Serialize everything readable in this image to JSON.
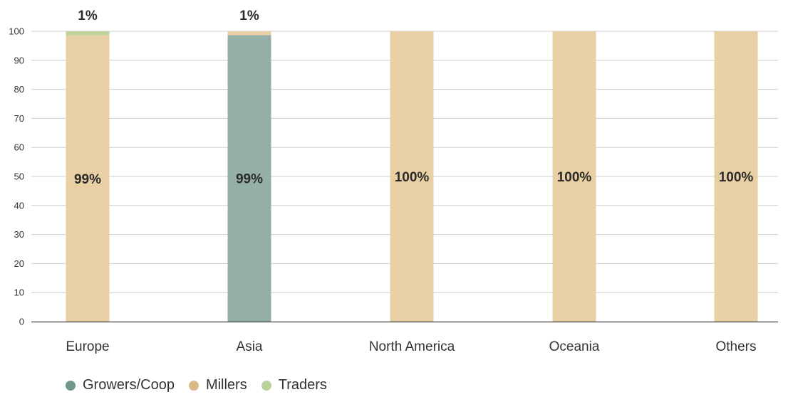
{
  "chart_data": {
    "type": "bar",
    "stacked": true,
    "categories": [
      "Europe",
      "Asia",
      "North America",
      "Oceania",
      "Others"
    ],
    "series": [
      {
        "name": "Growers/Coop",
        "color": "#94afa5",
        "values": [
          0,
          98.7,
          0,
          0,
          0
        ]
      },
      {
        "name": "Millers",
        "color": "#e8cfa4",
        "values": [
          98.6,
          1.3,
          100,
          100,
          100
        ]
      },
      {
        "name": "Traders",
        "color": "#bed39c",
        "values": [
          1.4,
          0,
          0,
          0,
          0
        ]
      }
    ],
    "data_labels": [
      {
        "category": "Europe",
        "series": "Millers",
        "text": "99%"
      },
      {
        "category": "Europe",
        "series": "Traders",
        "text": "1%"
      },
      {
        "category": "Asia",
        "series": "Growers/Coop",
        "text": "99%"
      },
      {
        "category": "Asia",
        "series": "Millers",
        "text": "1%"
      },
      {
        "category": "North America",
        "series": "Millers",
        "text": "100%"
      },
      {
        "category": "Oceania",
        "series": "Millers",
        "text": "100%"
      },
      {
        "category": "Others",
        "series": "Millers",
        "text": "100%"
      }
    ],
    "yticks": [
      0,
      10,
      20,
      30,
      40,
      50,
      60,
      70,
      80,
      90,
      100
    ],
    "ylim": [
      0,
      100
    ],
    "grid": true,
    "legend_position": "bottom-left",
    "legend_marker_colors": [
      "#6f978a",
      "#d9b889",
      "#b8d29a"
    ]
  }
}
